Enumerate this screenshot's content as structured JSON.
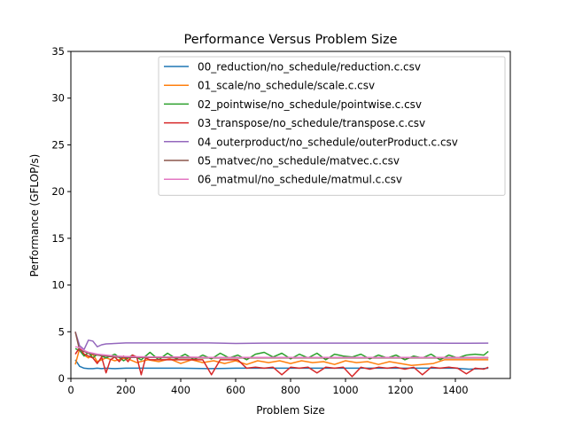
{
  "chart_data": {
    "type": "line",
    "title": "Performance Versus Problem Size",
    "xlabel": "Problem Size",
    "ylabel": "Performance (GFLOP/s)",
    "xlim": [
      0,
      1600
    ],
    "ylim": [
      0,
      35
    ],
    "x_ticks": [
      0,
      200,
      400,
      600,
      800,
      1000,
      1200,
      1400
    ],
    "y_ticks": [
      0,
      5,
      10,
      15,
      20,
      25,
      30,
      35
    ],
    "grid": false,
    "legend_position": "top-right",
    "series": [
      {
        "name": "00_reduction/no_schedule/reduction.c.csv",
        "color": "#1f77b4",
        "points": [
          [
            16,
            2.0
          ],
          [
            32,
            1.3
          ],
          [
            48,
            1.1
          ],
          [
            64,
            1.05
          ],
          [
            80,
            1.05
          ],
          [
            96,
            1.1
          ],
          [
            112,
            1.05
          ],
          [
            128,
            1.1
          ],
          [
            160,
            1.05
          ],
          [
            200,
            1.1
          ],
          [
            300,
            1.1
          ],
          [
            400,
            1.1
          ],
          [
            500,
            1.05
          ],
          [
            600,
            1.1
          ],
          [
            700,
            1.1
          ],
          [
            800,
            1.1
          ],
          [
            900,
            1.1
          ],
          [
            1000,
            1.1
          ],
          [
            1100,
            1.1
          ],
          [
            1200,
            1.1
          ],
          [
            1300,
            1.1
          ],
          [
            1400,
            1.1
          ],
          [
            1450,
            1.0
          ],
          [
            1500,
            1.05
          ],
          [
            1520,
            1.1
          ]
        ]
      },
      {
        "name": "01_scale/no_schedule/scale.c.csv",
        "color": "#ff7f0e",
        "points": [
          [
            16,
            1.5
          ],
          [
            32,
            3.2
          ],
          [
            48,
            2.5
          ],
          [
            64,
            2.2
          ],
          [
            80,
            2.6
          ],
          [
            96,
            1.8
          ],
          [
            128,
            2.2
          ],
          [
            160,
            1.9
          ],
          [
            200,
            2.2
          ],
          [
            240,
            1.7
          ],
          [
            280,
            2.0
          ],
          [
            320,
            1.8
          ],
          [
            360,
            2.1
          ],
          [
            400,
            1.6
          ],
          [
            440,
            2.0
          ],
          [
            480,
            1.7
          ],
          [
            520,
            1.9
          ],
          [
            560,
            1.6
          ],
          [
            600,
            1.9
          ],
          [
            640,
            1.5
          ],
          [
            680,
            1.9
          ],
          [
            720,
            1.7
          ],
          [
            760,
            1.9
          ],
          [
            800,
            1.6
          ],
          [
            840,
            1.9
          ],
          [
            880,
            1.7
          ],
          [
            920,
            1.8
          ],
          [
            960,
            1.5
          ],
          [
            1000,
            1.9
          ],
          [
            1040,
            1.7
          ],
          [
            1080,
            1.8
          ],
          [
            1120,
            1.5
          ],
          [
            1160,
            1.8
          ],
          [
            1200,
            1.6
          ],
          [
            1240,
            1.4
          ],
          [
            1280,
            1.5
          ],
          [
            1320,
            1.6
          ],
          [
            1360,
            2.0
          ],
          [
            1400,
            2.0
          ],
          [
            1440,
            2.0
          ],
          [
            1480,
            2.0
          ],
          [
            1520,
            2.0
          ]
        ]
      },
      {
        "name": "02_pointwise/no_schedule/pointwise.c.csv",
        "color": "#2ca02c",
        "points": [
          [
            16,
            3.2
          ],
          [
            32,
            3.0
          ],
          [
            48,
            2.4
          ],
          [
            64,
            2.8
          ],
          [
            80,
            2.2
          ],
          [
            96,
            2.6
          ],
          [
            112,
            2.4
          ],
          [
            128,
            2.2
          ],
          [
            160,
            2.6
          ],
          [
            192,
            1.9
          ],
          [
            224,
            2.5
          ],
          [
            256,
            2.0
          ],
          [
            288,
            2.8
          ],
          [
            320,
            2.0
          ],
          [
            352,
            2.7
          ],
          [
            384,
            2.1
          ],
          [
            416,
            2.6
          ],
          [
            448,
            2.0
          ],
          [
            480,
            2.5
          ],
          [
            512,
            2.1
          ],
          [
            544,
            2.7
          ],
          [
            576,
            2.2
          ],
          [
            608,
            2.5
          ],
          [
            640,
            2.0
          ],
          [
            672,
            2.6
          ],
          [
            704,
            2.8
          ],
          [
            736,
            2.3
          ],
          [
            768,
            2.7
          ],
          [
            800,
            2.1
          ],
          [
            832,
            2.6
          ],
          [
            864,
            2.2
          ],
          [
            896,
            2.7
          ],
          [
            928,
            2.0
          ],
          [
            960,
            2.6
          ],
          [
            992,
            2.4
          ],
          [
            1024,
            2.3
          ],
          [
            1056,
            2.6
          ],
          [
            1088,
            2.1
          ],
          [
            1120,
            2.5
          ],
          [
            1152,
            2.2
          ],
          [
            1184,
            2.5
          ],
          [
            1216,
            2.0
          ],
          [
            1248,
            2.4
          ],
          [
            1280,
            2.2
          ],
          [
            1312,
            2.6
          ],
          [
            1344,
            2.0
          ],
          [
            1376,
            2.5
          ],
          [
            1408,
            2.2
          ],
          [
            1440,
            2.5
          ],
          [
            1472,
            2.6
          ],
          [
            1504,
            2.5
          ],
          [
            1520,
            2.9
          ]
        ]
      },
      {
        "name": "03_transpose/no_schedule/transpose.c.csv",
        "color": "#d62728",
        "points": [
          [
            16,
            2.6
          ],
          [
            32,
            3.3
          ],
          [
            48,
            2.6
          ],
          [
            64,
            2.4
          ],
          [
            80,
            2.2
          ],
          [
            96,
            1.6
          ],
          [
            112,
            2.3
          ],
          [
            128,
            0.6
          ],
          [
            144,
            2.0
          ],
          [
            160,
            2.3
          ],
          [
            176,
            1.8
          ],
          [
            192,
            2.4
          ],
          [
            208,
            1.8
          ],
          [
            224,
            2.5
          ],
          [
            240,
            2.3
          ],
          [
            256,
            0.4
          ],
          [
            272,
            2.2
          ],
          [
            288,
            2.0
          ],
          [
            320,
            2.0
          ],
          [
            352,
            2.0
          ],
          [
            384,
            2.0
          ],
          [
            416,
            2.0
          ],
          [
            448,
            2.0
          ],
          [
            480,
            2.0
          ],
          [
            512,
            0.4
          ],
          [
            544,
            2.0
          ],
          [
            576,
            2.0
          ],
          [
            608,
            2.0
          ],
          [
            640,
            1.1
          ],
          [
            672,
            1.2
          ],
          [
            704,
            1.1
          ],
          [
            736,
            1.2
          ],
          [
            768,
            0.4
          ],
          [
            800,
            1.2
          ],
          [
            832,
            1.1
          ],
          [
            864,
            1.2
          ],
          [
            896,
            0.6
          ],
          [
            928,
            1.2
          ],
          [
            960,
            1.1
          ],
          [
            992,
            1.2
          ],
          [
            1024,
            0.2
          ],
          [
            1056,
            1.2
          ],
          [
            1088,
            1.0
          ],
          [
            1120,
            1.2
          ],
          [
            1152,
            1.1
          ],
          [
            1184,
            1.2
          ],
          [
            1216,
            1.0
          ],
          [
            1248,
            1.2
          ],
          [
            1280,
            0.4
          ],
          [
            1312,
            1.2
          ],
          [
            1344,
            1.1
          ],
          [
            1376,
            1.2
          ],
          [
            1408,
            1.1
          ],
          [
            1440,
            0.5
          ],
          [
            1472,
            1.1
          ],
          [
            1504,
            1.0
          ],
          [
            1520,
            1.2
          ]
        ]
      },
      {
        "name": "04_outerproduct/no_schedule/outerProduct.c.csv",
        "color": "#9467bd",
        "points": [
          [
            16,
            5.0
          ],
          [
            32,
            3.5
          ],
          [
            48,
            3.1
          ],
          [
            64,
            4.1
          ],
          [
            80,
            4.0
          ],
          [
            96,
            3.4
          ],
          [
            112,
            3.6
          ],
          [
            128,
            3.7
          ],
          [
            160,
            3.75
          ],
          [
            200,
            3.8
          ],
          [
            300,
            3.8
          ],
          [
            400,
            3.8
          ],
          [
            500,
            3.8
          ],
          [
            600,
            3.75
          ],
          [
            700,
            3.78
          ],
          [
            800,
            3.78
          ],
          [
            900,
            3.78
          ],
          [
            1000,
            3.78
          ],
          [
            1100,
            3.78
          ],
          [
            1200,
            3.78
          ],
          [
            1300,
            3.78
          ],
          [
            1400,
            3.77
          ],
          [
            1450,
            3.77
          ],
          [
            1520,
            3.78
          ]
        ]
      },
      {
        "name": "05_matvec/no_schedule/matvec.c.csv",
        "color": "#8c564b",
        "points": [
          [
            16,
            5.0
          ],
          [
            32,
            3.0
          ],
          [
            48,
            2.9
          ],
          [
            64,
            2.7
          ],
          [
            80,
            2.6
          ],
          [
            96,
            2.5
          ],
          [
            128,
            2.4
          ],
          [
            160,
            2.3
          ],
          [
            200,
            2.25
          ],
          [
            300,
            2.25
          ],
          [
            400,
            2.2
          ],
          [
            500,
            2.2
          ],
          [
            600,
            2.2
          ],
          [
            700,
            2.2
          ],
          [
            800,
            2.2
          ],
          [
            900,
            2.2
          ],
          [
            1000,
            2.2
          ],
          [
            1100,
            2.2
          ],
          [
            1200,
            2.2
          ],
          [
            1300,
            2.2
          ],
          [
            1400,
            2.2
          ],
          [
            1520,
            2.2
          ]
        ]
      },
      {
        "name": "06_matmul/no_schedule/matmul.c.csv",
        "color": "#e377c2",
        "points": [
          [
            16,
            3.4
          ],
          [
            32,
            3.3
          ],
          [
            48,
            3.0
          ],
          [
            64,
            2.8
          ],
          [
            80,
            2.7
          ],
          [
            96,
            2.6
          ],
          [
            128,
            2.5
          ],
          [
            160,
            2.4
          ],
          [
            200,
            2.35
          ],
          [
            300,
            2.3
          ],
          [
            400,
            2.3
          ],
          [
            500,
            2.25
          ],
          [
            600,
            2.25
          ],
          [
            700,
            2.25
          ],
          [
            800,
            2.25
          ],
          [
            900,
            2.25
          ],
          [
            1000,
            2.25
          ],
          [
            1100,
            2.25
          ],
          [
            1200,
            2.25
          ],
          [
            1300,
            2.25
          ],
          [
            1400,
            2.25
          ],
          [
            1520,
            2.25
          ]
        ]
      }
    ]
  }
}
